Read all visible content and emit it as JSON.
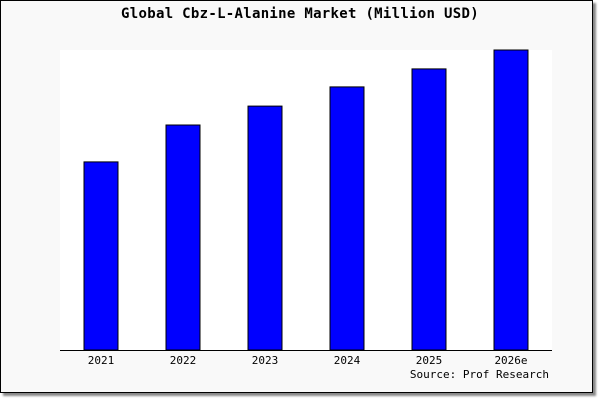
{
  "chart_data": {
    "type": "bar",
    "title": "Global Cbz-L-Alanine Market (Million USD)",
    "categories": [
      "2021",
      "2022",
      "2023",
      "2024",
      "2025",
      "2026e"
    ],
    "values": [
      62.7,
      75.0,
      81.3,
      87.7,
      93.7,
      100.0
    ],
    "value_note_unit": "relative (no y-axis printed; 2026e = 100)",
    "ylim": [
      0,
      100
    ],
    "xlabel": "",
    "ylabel": "",
    "grid": false,
    "bar_color": "#0000ff",
    "bar_edge_color": "#000000",
    "plot_background": "#ffffff",
    "source": "Source: Prof Research"
  }
}
